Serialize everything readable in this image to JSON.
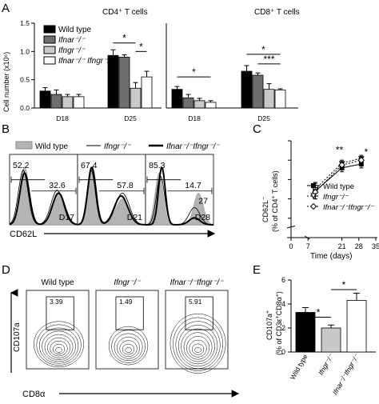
{
  "panels": {
    "A": "A",
    "B": "B",
    "C": "C",
    "D": "D",
    "E": "E"
  },
  "legend_A": [
    "Wild type",
    "Ifnar⁻/⁻",
    "Ifngr⁻/⁻",
    "Ifnar⁻/⁻ Ifngr⁻/⁻"
  ],
  "histogram_B": {
    "xlabel": "CD62L",
    "legend": [
      "Wild type",
      "Ifngr⁻/⁻",
      "Ifnar⁻/⁻Ifngr⁻/⁻"
    ],
    "plots": [
      {
        "day": "D17",
        "left": "52.2",
        "right": "32.6"
      },
      {
        "day": "D21",
        "left": "67.4",
        "right": "57.8"
      },
      {
        "day": "D28",
        "left": "85.3",
        "right": "14.7",
        "extra": "27"
      }
    ]
  },
  "flow_D": {
    "xlabel": "CD8α",
    "ylabel": "CD107a",
    "plots": [
      {
        "title": "Wild type",
        "value": "3.39"
      },
      {
        "title": "Ifngr⁻/⁻",
        "value": "1.49"
      },
      {
        "title": "Ifnar⁻/⁻Ifngr⁻/⁻",
        "value": "5.91"
      }
    ]
  },
  "colors": {
    "wt": "#000000",
    "ifnar": "#6e6e6e",
    "ifngr": "#c8c8c8",
    "dko": "#ffffff",
    "hist_fill": "#b4b4b4"
  },
  "chart_data": [
    {
      "type": "bar",
      "panel": "A-CD4",
      "title": "CD4⁺ T cells",
      "ylabel": "Cell number (x10⁶)",
      "ylim": [
        0,
        1.5
      ],
      "yticks": [
        "0.0",
        "0.5",
        "1.0",
        "1.5"
      ],
      "categories": [
        "D18",
        "D25"
      ],
      "series": [
        {
          "name": "Wild type",
          "values": [
            0.3,
            0.93
          ]
        },
        {
          "name": "Ifnar⁻/⁻",
          "values": [
            0.24,
            0.9
          ]
        },
        {
          "name": "Ifngr⁻/⁻",
          "values": [
            0.2,
            0.35
          ]
        },
        {
          "name": "Ifnar⁻/⁻ Ifngr⁻/⁻",
          "values": [
            0.2,
            0.55
          ]
        }
      ],
      "errors": [
        [
          0.06,
          0.1
        ],
        [
          0.08,
          0.04
        ],
        [
          0.04,
          0.1
        ],
        [
          0.04,
          0.1
        ]
      ],
      "significance": [
        {
          "from": [
            1,
            0
          ],
          "to": [
            1,
            2
          ],
          "y": 1.15,
          "label": "*"
        },
        {
          "from": [
            1,
            2
          ],
          "to": [
            1,
            3
          ],
          "y": 1.0,
          "label": "*"
        }
      ]
    },
    {
      "type": "bar",
      "panel": "A-CD8",
      "title": "CD8⁺ T cells",
      "ylim": [
        0,
        1.5
      ],
      "categories": [
        "D18",
        "D25"
      ],
      "series": [
        {
          "name": "Wild type",
          "values": [
            0.33,
            0.65
          ]
        },
        {
          "name": "Ifnar⁻/⁻",
          "values": [
            0.18,
            0.58
          ]
        },
        {
          "name": "Ifngr⁻/⁻",
          "values": [
            0.13,
            0.33
          ]
        },
        {
          "name": "Ifnar⁻/⁻ Ifngr⁻/⁻",
          "values": [
            0.1,
            0.32
          ]
        }
      ],
      "errors": [
        [
          0.05,
          0.1
        ],
        [
          0.06,
          0.04
        ],
        [
          0.04,
          0.1
        ],
        [
          0.03,
          0.02
        ]
      ],
      "significance": [
        {
          "from": [
            0,
            0
          ],
          "to": [
            0,
            3
          ],
          "y": 0.55,
          "label": "*"
        },
        {
          "from": [
            1,
            0
          ],
          "to": [
            1,
            3
          ],
          "y": 0.95,
          "label": "*"
        },
        {
          "from": [
            1,
            1
          ],
          "to": [
            1,
            3
          ],
          "y": 0.78,
          "label": "***"
        }
      ]
    },
    {
      "type": "line",
      "panel": "C",
      "ylabel": "CD62L⁻ (% of CD4⁺ T cells)",
      "xlabel": "Time (days)",
      "xlim": [
        0,
        35
      ],
      "ylim": [
        0,
        100
      ],
      "xticks": [
        0,
        7,
        21,
        28,
        35
      ],
      "yticks": [
        0,
        20,
        40,
        60,
        80,
        100
      ],
      "series": [
        {
          "name": "Wild type",
          "x": [
            10,
            21,
            29
          ],
          "y": [
            48,
            72,
            76
          ],
          "err": [
            8,
            4,
            4
          ]
        },
        {
          "name": "Ifngr⁻/⁻",
          "x": [
            10,
            21,
            29
          ],
          "y": [
            50,
            77,
            82
          ],
          "err": [
            7,
            3,
            3
          ]
        },
        {
          "name": "Ifnar⁻/⁻Ifngr⁻/⁻",
          "x": [
            10,
            21,
            29
          ],
          "y": [
            47,
            75,
            80
          ],
          "err": [
            7,
            3,
            3
          ]
        }
      ],
      "annotations": [
        {
          "x": 20,
          "y": 87,
          "label": "**"
        },
        {
          "x": 31,
          "y": 85,
          "label": "*"
        }
      ]
    },
    {
      "type": "bar",
      "panel": "E",
      "ylabel": "CD107a⁺ (% of CD3ε⁺CD8α⁺)",
      "ylim": [
        0,
        6
      ],
      "yticks": [
        0,
        2,
        4,
        6
      ],
      "categories": [
        "Wild type",
        "Ifngr⁻/⁻",
        "Ifnar⁻/⁻Ifngr⁻/⁻"
      ],
      "values": [
        3.3,
        2.0,
        4.3
      ],
      "errors": [
        0.4,
        0.25,
        0.6
      ],
      "significance": [
        {
          "from": 0,
          "to": 1,
          "y": 2.9,
          "label": "*"
        },
        {
          "from": 1,
          "to": 2,
          "y": 5.2,
          "label": "*"
        }
      ]
    }
  ]
}
